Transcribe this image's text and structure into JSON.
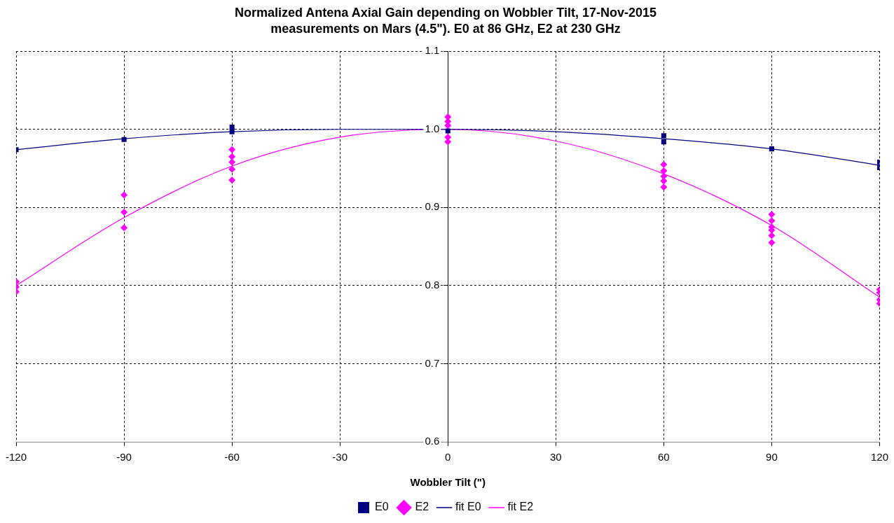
{
  "chart_data": {
    "type": "scatter",
    "title": "Normalized Antena Axial Gain depending on Wobbler Tilt, 17-Nov-2015",
    "subtitle": "measurements on Mars (4.5\"). E0 at 86 GHz, E2 at 230 GHz",
    "xlabel": "Wobbler Tilt (\")",
    "xlim": [
      -120,
      120
    ],
    "xticks": [
      -120,
      -90,
      -60,
      -30,
      0,
      30,
      60,
      90,
      120
    ],
    "ylim": [
      0.6,
      1.1
    ],
    "yticks": [
      {
        "value": 0.6,
        "label": "0.6"
      },
      {
        "value": 0.7,
        "label": "0.7"
      },
      {
        "value": 0.8,
        "label": "0.8"
      },
      {
        "value": 0.9,
        "label": "0.9"
      },
      {
        "value": 1,
        "label": "1.0"
      },
      {
        "value": 1.1,
        "label": "1.1"
      }
    ],
    "grid": true,
    "legend": "bottom",
    "series": [
      {
        "name": "E0",
        "color": "#000080",
        "marker": "square",
        "x": [
          -120,
          -90,
          -60,
          -60,
          0,
          60,
          60,
          90,
          120,
          120
        ],
        "values": [
          0.974,
          0.987,
          0.997,
          1.003,
          0.998,
          0.992,
          0.984,
          0.975,
          0.958,
          0.951
        ]
      },
      {
        "name": "E2",
        "color": "#ff00ff",
        "marker": "diamond",
        "x": [
          -120,
          -120,
          -120,
          -90,
          -90,
          -90,
          -60,
          -60,
          -60,
          -60,
          -60,
          0,
          0,
          0,
          0,
          0,
          60,
          60,
          60,
          60,
          60,
          90,
          90,
          90,
          90,
          90,
          90,
          120,
          120,
          120,
          120
        ],
        "values": [
          0.805,
          0.798,
          0.792,
          0.916,
          0.894,
          0.874,
          0.974,
          0.965,
          0.958,
          0.949,
          0.935,
          1.016,
          1.01,
          1.005,
          0.99,
          0.984,
          0.955,
          0.947,
          0.94,
          0.934,
          0.926,
          0.891,
          0.883,
          0.875,
          0.871,
          0.864,
          0.855,
          0.795,
          0.791,
          0.782,
          0.777
        ]
      },
      {
        "name": "fit E0",
        "type": "line",
        "color": "#000080",
        "marker": "none",
        "x": [
          -120,
          -90,
          -60,
          -30,
          0,
          30,
          60,
          90,
          120
        ],
        "values": [
          0.974,
          0.988,
          0.997,
          1.0,
          1.0,
          0.997,
          0.988,
          0.975,
          0.954
        ]
      },
      {
        "name": "fit E2",
        "type": "line",
        "color": "#ff00ff",
        "marker": "none",
        "x": [
          -120,
          -90,
          -60,
          -30,
          0,
          30,
          60,
          90,
          120
        ],
        "values": [
          0.8,
          0.887,
          0.953,
          0.99,
          1.0,
          0.985,
          0.943,
          0.877,
          0.785
        ]
      }
    ]
  }
}
